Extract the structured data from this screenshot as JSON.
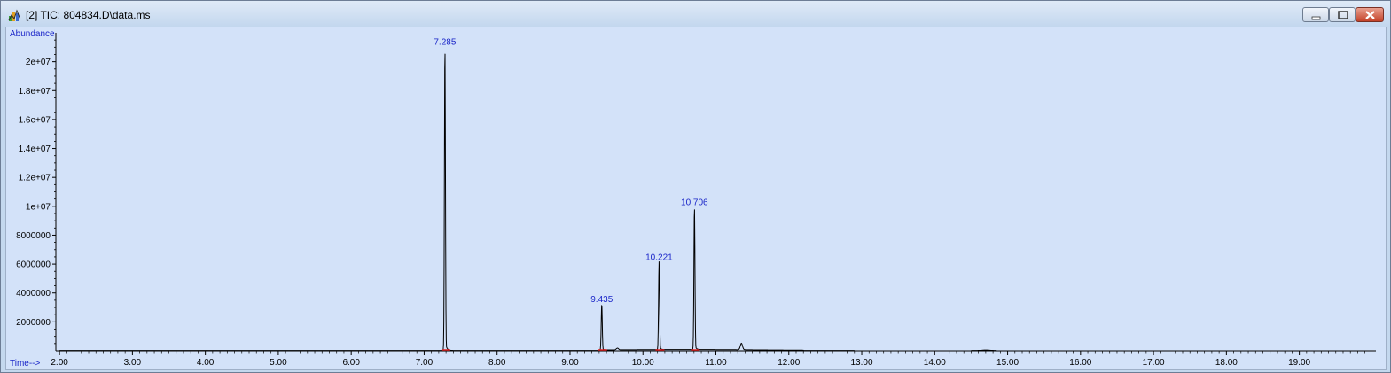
{
  "window": {
    "title": "[2] TIC: 804834.D\\data.ms",
    "icon": "chromatogram-app-icon"
  },
  "colors": {
    "plot_background": "#d3e2f9",
    "trace": "#000000",
    "peak_label": "#1a25c8",
    "baseline_marker": "#e02020"
  },
  "chart_data": {
    "type": "line",
    "title": "",
    "ylabel": "Abundance",
    "xlabel": "Time-->",
    "xlim": [
      1.95,
      20.05
    ],
    "ylim": [
      0,
      22000000
    ],
    "x_ticks": [
      "2.00",
      "3.00",
      "4.00",
      "5.00",
      "6.00",
      "7.00",
      "8.00",
      "9.00",
      "10.00",
      "11.00",
      "12.00",
      "13.00",
      "14.00",
      "15.00",
      "16.00",
      "17.00",
      "18.00",
      "19.00"
    ],
    "y_ticks": [
      "2000000",
      "4000000",
      "6000000",
      "8000000",
      "1e+07",
      "1.2e+07",
      "1.4e+07",
      "1.6e+07",
      "1.8e+07",
      "2e+07"
    ],
    "peaks": [
      {
        "x": 7.285,
        "y": 21000000,
        "label": "7.285"
      },
      {
        "x": 9.435,
        "y": 3200000,
        "label": "9.435"
      },
      {
        "x": 10.221,
        "y": 6100000,
        "label": "10.221"
      },
      {
        "x": 10.706,
        "y": 9900000,
        "label": "10.706"
      }
    ],
    "minor_bumps": [
      {
        "x": 11.35,
        "y": 450000
      },
      {
        "x": 9.65,
        "y": 120000
      }
    ],
    "grid": false
  }
}
